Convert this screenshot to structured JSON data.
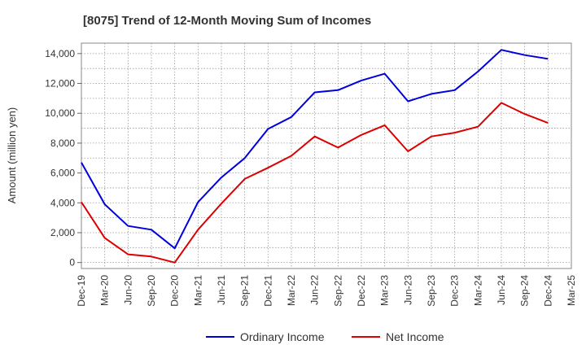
{
  "chart_data": {
    "type": "line",
    "title": "[8075]  Trend of 12-Month Moving Sum of Incomes",
    "xlabel": "",
    "ylabel": "Amount (million yen)",
    "ylim": [
      -400,
      14700
    ],
    "yticks": [
      0,
      2000,
      4000,
      6000,
      8000,
      10000,
      12000,
      14000
    ],
    "ytick_labels": [
      "0",
      "2,000",
      "4,000",
      "6,000",
      "8,000",
      "10,000",
      "12,000",
      "14,000"
    ],
    "categories": [
      "Dec-19",
      "Mar-20",
      "Jun-20",
      "Sep-20",
      "Dec-20",
      "Mar-21",
      "Jun-21",
      "Sep-21",
      "Dec-21",
      "Mar-22",
      "Jun-22",
      "Sep-22",
      "Dec-22",
      "Mar-23",
      "Jun-23",
      "Sep-23",
      "Dec-23",
      "Mar-24",
      "Jun-24",
      "Sep-24",
      "Dec-24",
      "Mar-25"
    ],
    "grid": true,
    "legend_position": "bottom-center",
    "series": [
      {
        "name": "Ordinary Income",
        "color": "#0000dd",
        "values": [
          6700,
          3900,
          2450,
          2200,
          950,
          4050,
          5700,
          7000,
          8950,
          9750,
          11400,
          11550,
          12200,
          12650,
          10800,
          11300,
          11550,
          12800,
          14250,
          13900,
          13650,
          null
        ]
      },
      {
        "name": "Net Income",
        "color": "#dd0000",
        "values": [
          4050,
          1650,
          550,
          400,
          0,
          2200,
          3950,
          5600,
          6350,
          7150,
          8450,
          7700,
          8550,
          9200,
          7450,
          8450,
          8700,
          9100,
          10700,
          9950,
          9350,
          null
        ]
      }
    ]
  }
}
